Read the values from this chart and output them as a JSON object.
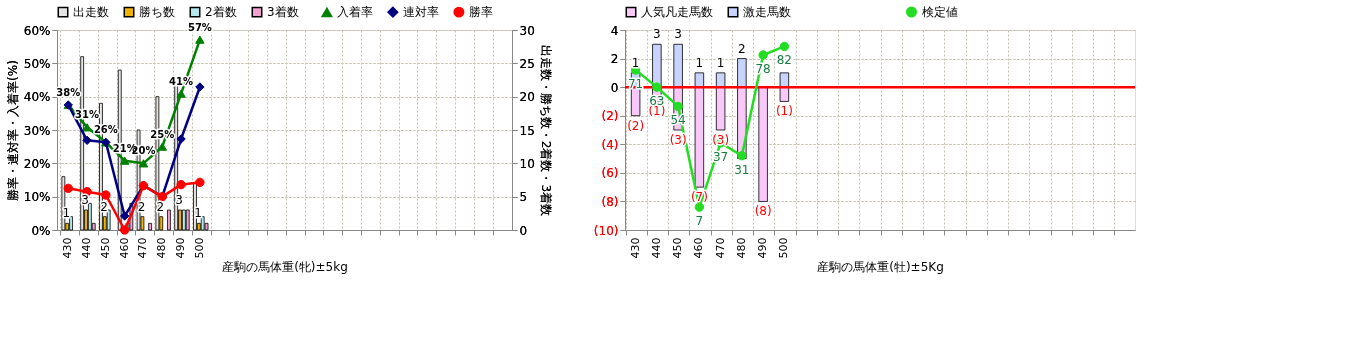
{
  "chart_data": [
    {
      "type": "bar",
      "categories": [
        "430",
        "440",
        "450",
        "460",
        "470",
        "480",
        "490",
        "500",
        null,
        null,
        null,
        null,
        null,
        null,
        null,
        null,
        null,
        null,
        null,
        null,
        null,
        null,
        null,
        null
      ],
      "xlabel": "産駒の馬体重(牝)±5kg",
      "ylabel": "勝率・連対率・入着率(%)",
      "y2label": "出走数・勝ち数・2着数・3着数",
      "ylim": [
        0,
        60
      ],
      "yticks": [
        {
          "value": 0,
          "label": "0%"
        },
        {
          "value": 10,
          "label": "10%"
        },
        {
          "value": 20,
          "label": "20%"
        },
        {
          "value": 30,
          "label": "30%"
        },
        {
          "value": 40,
          "label": "40%"
        },
        {
          "value": 50,
          "label": "50%"
        },
        {
          "value": 60,
          "label": "60%"
        }
      ],
      "y2lim": [
        0,
        30
      ],
      "y2ticks": [
        0,
        5,
        10,
        15,
        20,
        25,
        30
      ],
      "grid": true,
      "legend": "top",
      "series": [
        {
          "name": "出走数",
          "color": "#e4e4e4",
          "axis": "y2",
          "values": [
            8,
            26,
            19,
            24,
            15,
            20,
            22,
            7,
            null,
            null,
            null,
            null,
            null,
            null,
            null,
            null,
            null,
            null,
            null,
            null,
            null,
            null,
            null,
            null
          ]
        },
        {
          "name": "勝ち数",
          "color": "#f0b400",
          "axis": "y2",
          "values": [
            1,
            3,
            2,
            0,
            2,
            2,
            3,
            1,
            null,
            null,
            null,
            null,
            null,
            null,
            null,
            null,
            null,
            null,
            null,
            null,
            null,
            null,
            null,
            null
          ],
          "value_labels": [
            "1",
            "3",
            "2",
            null,
            "2",
            "2",
            "3",
            "1",
            null,
            null,
            null,
            null,
            null,
            null,
            null,
            null,
            null,
            null,
            null,
            null,
            null,
            null,
            null,
            null
          ]
        },
        {
          "name": "2着数",
          "color": "#b4e8ec",
          "axis": "y2",
          "values": [
            2,
            4,
            3,
            1,
            0,
            0,
            3,
            2,
            null,
            null,
            null,
            null,
            null,
            null,
            null,
            null,
            null,
            null,
            null,
            null,
            null,
            null,
            null,
            null
          ]
        },
        {
          "name": "3着数",
          "color": "#f0a0d0",
          "axis": "y2",
          "values": [
            0,
            1,
            0,
            4,
            1,
            3,
            3,
            1,
            null,
            null,
            null,
            null,
            null,
            null,
            null,
            null,
            null,
            null,
            null,
            null,
            null,
            null,
            null,
            null
          ]
        },
        {
          "name": "入着率",
          "type": "line",
          "color": "#008000",
          "marker": "triangle",
          "values": [
            37.5,
            30.8,
            26.3,
            20.8,
            20,
            25,
            40.9,
            57.1,
            null,
            null,
            null,
            null,
            null,
            null,
            null,
            null,
            null,
            null,
            null,
            null,
            null,
            null,
            null,
            null
          ],
          "value_labels": [
            "38%",
            "31%",
            "26%",
            "21%",
            "20%",
            "25%",
            "41%",
            "57%",
            null,
            null,
            null,
            null,
            null,
            null,
            null,
            null,
            null,
            null,
            null,
            null,
            null,
            null,
            null,
            null
          ]
        },
        {
          "name": "連対率",
          "type": "line",
          "color": "#000080",
          "marker": "diamond",
          "values": [
            37.5,
            26.9,
            26.3,
            4.2,
            13.3,
            10,
            27.3,
            42.9,
            null,
            null,
            null,
            null,
            null,
            null,
            null,
            null,
            null,
            null,
            null,
            null,
            null,
            null,
            null,
            null
          ]
        },
        {
          "name": "勝率",
          "type": "line",
          "color": "#ff0000",
          "marker": "circle",
          "values": [
            12.5,
            11.5,
            10.5,
            0,
            13.3,
            10,
            13.6,
            14.3,
            null,
            null,
            null,
            null,
            null,
            null,
            null,
            null,
            null,
            null,
            null,
            null,
            null,
            null,
            null,
            null
          ]
        }
      ]
    },
    {
      "type": "bar",
      "stacked": true,
      "categories": [
        "430",
        "440",
        "450",
        "460",
        "470",
        "480",
        "490",
        "500",
        null,
        null,
        null,
        null,
        null,
        null,
        null,
        null,
        null,
        null,
        null,
        null,
        null,
        null,
        null,
        null
      ],
      "xlabel": "産駒の馬体重(牡)±5Kg",
      "ylim": [
        -10,
        4
      ],
      "yticks": [
        4,
        2,
        0,
        {
          "value": -2,
          "label": "(2)"
        },
        {
          "value": -4,
          "label": "(4)"
        },
        {
          "value": -6,
          "label": "(6)"
        },
        {
          "value": -8,
          "label": "(8)"
        },
        {
          "value": -10,
          "label": "(10)"
        }
      ],
      "y2lim": [
        -3.67,
        89.67
      ],
      "grid": true,
      "legend": "top",
      "ref_lines": [
        {
          "axis": "y",
          "value": 0,
          "color": "#ff0000"
        }
      ],
      "series": [
        {
          "name": "人気凡走馬数",
          "color": "#f8c8f8",
          "values": [
            -2,
            -1,
            -3,
            -7,
            -3,
            -5,
            -8,
            -1,
            null,
            null,
            null,
            null,
            null,
            null,
            null,
            null,
            null,
            null,
            null,
            null,
            null,
            null,
            null,
            null
          ],
          "value_labels": [
            "(2)",
            "(1)",
            "(3)",
            "(7)",
            "(3)",
            null,
            "(8)",
            "(1)",
            null,
            null,
            null,
            null,
            null,
            null,
            null,
            null,
            null,
            null,
            null,
            null,
            null,
            null,
            null,
            null
          ]
        },
        {
          "name": "激走馬数",
          "color": "#c8d4fc",
          "values": [
            1,
            3,
            3,
            1,
            1,
            2,
            0,
            1,
            null,
            null,
            null,
            null,
            null,
            null,
            null,
            null,
            null,
            null,
            null,
            null,
            null,
            null,
            null,
            null
          ],
          "value_labels": [
            "1",
            "3",
            "3",
            "1",
            "1",
            "2",
            null,
            null,
            null,
            null,
            null,
            null,
            null,
            null,
            null,
            null,
            null,
            null,
            null,
            null,
            null,
            null,
            null,
            null
          ]
        },
        {
          "name": "検定値",
          "type": "line",
          "axis": "y2",
          "color": "#22dd22",
          "marker": "circle",
          "values": [
            71,
            63,
            54,
            7,
            37,
            31,
            78,
            82,
            null,
            null,
            null,
            null,
            null,
            null,
            null,
            null,
            null,
            null,
            null,
            null,
            null,
            null,
            null,
            null
          ],
          "data_labels": true
        }
      ]
    }
  ]
}
